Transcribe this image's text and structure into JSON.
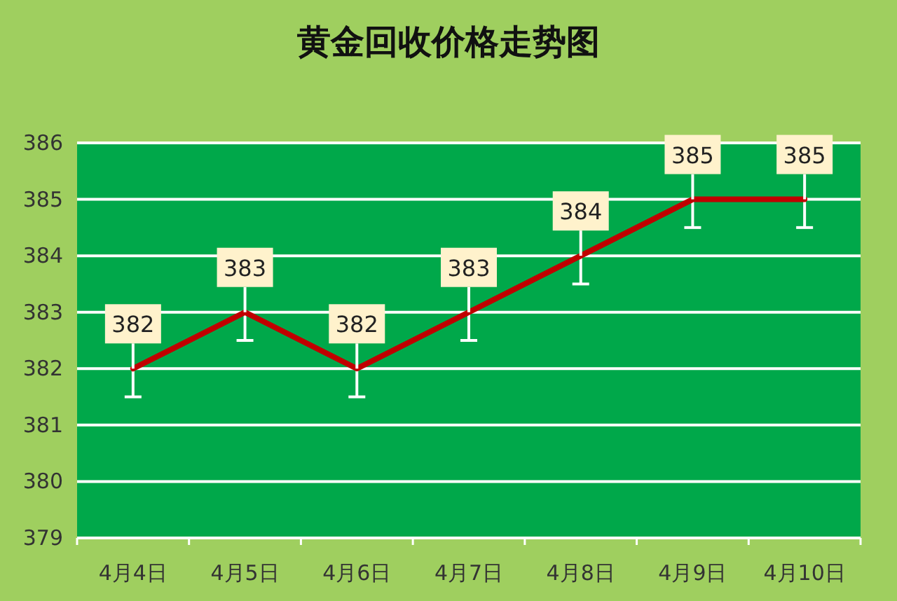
{
  "chart_data": {
    "type": "line",
    "title": "黄金回收价格走势图",
    "categories": [
      "4月4日",
      "4月5日",
      "4月6日",
      "4月7日",
      "4月8日",
      "4月9日",
      "4月10日"
    ],
    "values": [
      382,
      383,
      382,
      383,
      384,
      385,
      385
    ],
    "errors": [
      [
        381.5,
        382
      ],
      [
        382.5,
        383
      ],
      [
        381.5,
        382
      ],
      [
        382.5,
        383
      ],
      [
        383.5,
        384
      ],
      [
        384.5,
        385
      ],
      [
        384.5,
        385
      ]
    ],
    "color": "#c00000",
    "data_labels": true,
    "ylim": [
      379,
      386
    ],
    "yticks": [
      379,
      380,
      381,
      382,
      383,
      384,
      385,
      386
    ],
    "grid": "y",
    "marker": "none",
    "line_style": "solid"
  }
}
